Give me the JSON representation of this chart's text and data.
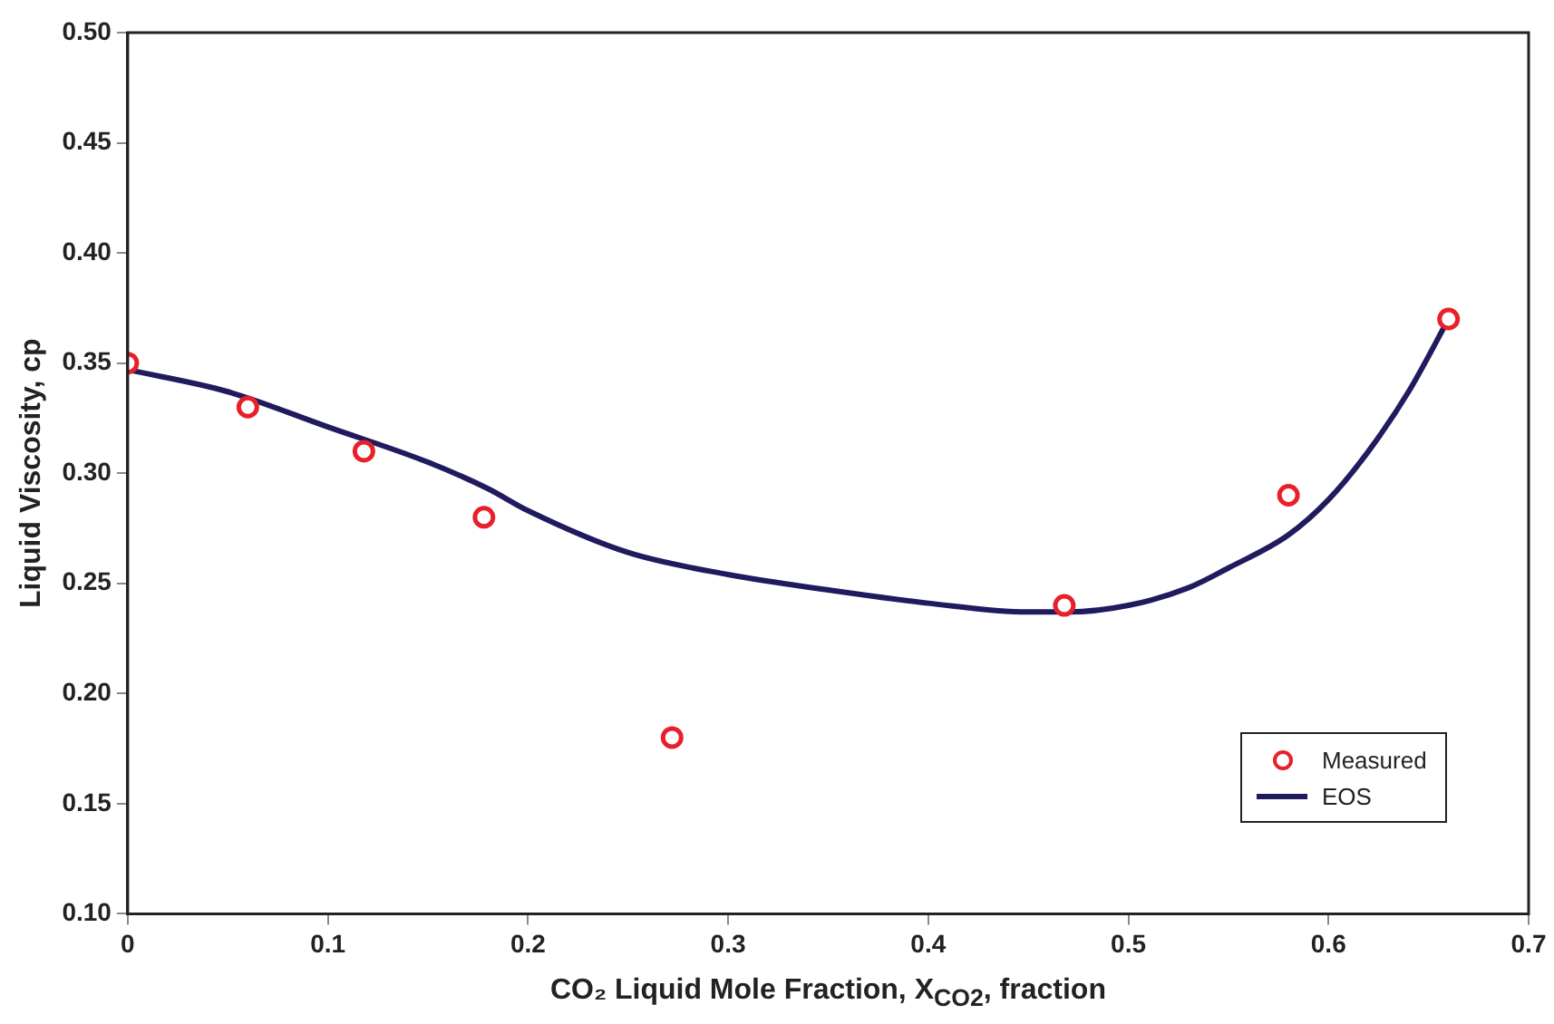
{
  "chart_data": {
    "type": "scatter",
    "xlabel": "CO₂ Liquid Mole Fraction, X$_{CO2}$, fraction",
    "ylabel": "Liquid Viscosity, cp",
    "xlim": [
      0,
      0.7
    ],
    "xticks": [
      0,
      0.1,
      0.2,
      0.3,
      0.4,
      0.5,
      0.6,
      0.7
    ],
    "ylim": [
      0.1,
      0.5
    ],
    "yticks": [
      {
        "value": 0.1,
        "label": "0.10"
      },
      {
        "value": 0.15,
        "label": "0.15"
      },
      {
        "value": 0.2,
        "label": "0.20"
      },
      {
        "value": 0.25,
        "label": "0.25"
      },
      {
        "value": 0.3,
        "label": "0.30"
      },
      {
        "value": 0.35,
        "label": "0.35"
      },
      {
        "value": 0.4,
        "label": "0.40"
      },
      {
        "value": 0.45,
        "label": "0.45"
      },
      {
        "value": 0.5,
        "label": "0.50"
      }
    ],
    "grid": false,
    "legend": "bottom right",
    "series": [
      {
        "name": "Measured",
        "type": "scatter",
        "color": "#e8202a",
        "marker": "circle",
        "x": [
          0,
          0.06,
          0.118,
          0.178,
          0.272,
          0.468,
          0.58,
          0.66
        ],
        "values": [
          0.35,
          0.33,
          0.31,
          0.28,
          0.18,
          0.24,
          0.29,
          0.37
        ]
      },
      {
        "name": "EOS",
        "type": "line",
        "color": "#1f1b5e",
        "marker": "none",
        "line_style": "solid",
        "x": [
          0,
          0.05,
          0.1,
          0.15,
          0.18,
          0.2,
          0.25,
          0.3,
          0.35,
          0.4,
          0.45,
          0.47,
          0.5,
          0.53,
          0.55,
          0.58,
          0.6,
          0.62,
          0.64,
          0.66
        ],
        "values": [
          0.347,
          0.337,
          0.321,
          0.305,
          0.293,
          0.283,
          0.264,
          0.254,
          0.247,
          0.241,
          0.237,
          0.237,
          0.24,
          0.248,
          0.257,
          0.272,
          0.288,
          0.31,
          0.337,
          0.37
        ]
      }
    ]
  }
}
